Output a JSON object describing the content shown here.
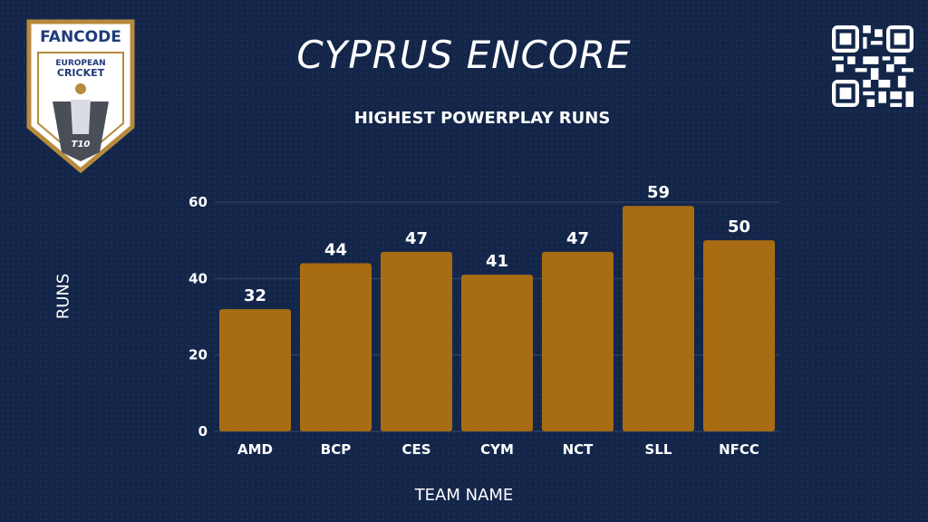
{
  "header": {
    "title": "CYPRUS ENCORE",
    "logo_text_brand": "FANCODE",
    "logo_text_line1": "EUROPEAN",
    "logo_text_line2": "CRICKET",
    "logo_text_badge": "T10"
  },
  "colors": {
    "background": "#13264a",
    "bar": "#a86c12",
    "text": "#ffffff",
    "logo_gold": "#b78b3c"
  },
  "chart_data": {
    "type": "bar",
    "title": "HIGHEST POWERPLAY RUNS",
    "xlabel": "TEAM NAME",
    "ylabel": "RUNS",
    "categories": [
      "AMD",
      "BCP",
      "CES",
      "CYM",
      "NCT",
      "SLL",
      "NFCC"
    ],
    "values": [
      32,
      44,
      47,
      41,
      47,
      59,
      50
    ],
    "ylim": [
      0,
      60
    ],
    "yticks": [
      0,
      20,
      40,
      60
    ],
    "grid": true,
    "legend": "none"
  }
}
